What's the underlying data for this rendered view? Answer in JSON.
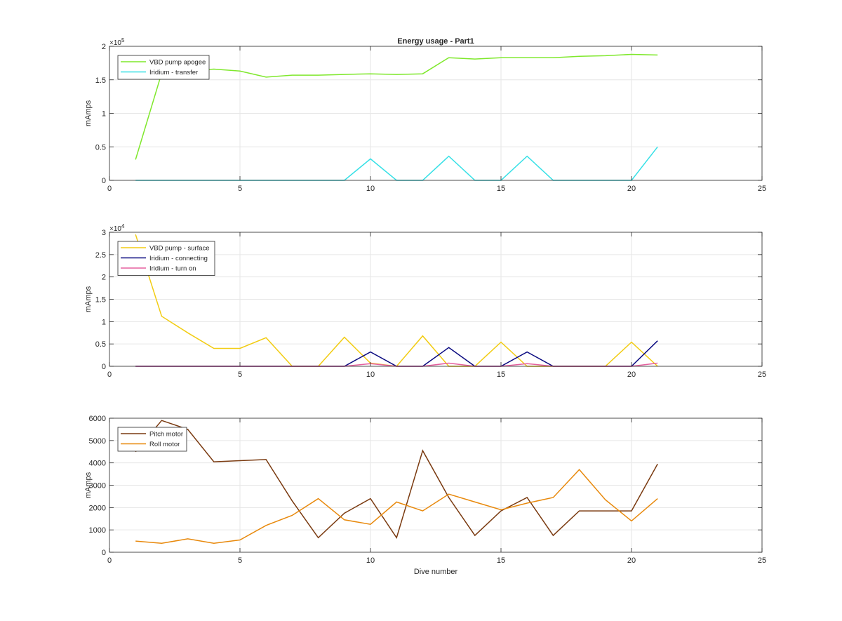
{
  "figure": {
    "title": "Energy usage - Part1",
    "colors": {
      "background": "#ffffff",
      "axes": "#262626",
      "grid": "#e6e6e6"
    }
  },
  "chart_data": [
    {
      "type": "line",
      "title": "Energy usage - Part1",
      "xlabel": "",
      "ylabel": "mAmps",
      "xlim": [
        0,
        25
      ],
      "ylim": [
        0,
        200000
      ],
      "xticks": [
        "0",
        "5",
        "10",
        "15",
        "20",
        "25"
      ],
      "xtick_values": [
        0,
        5,
        10,
        15,
        20,
        25
      ],
      "yticks": [
        "0",
        "0.5",
        "1",
        "1.5",
        "2"
      ],
      "ytick_values": [
        0,
        50000,
        100000,
        150000,
        200000
      ],
      "exponent_label": "×10",
      "exponent_power": "5",
      "grid": true,
      "legend_position": "top-left",
      "x": [
        1,
        2,
        3,
        4,
        5,
        6,
        7,
        8,
        9,
        10,
        11,
        12,
        13,
        14,
        15,
        16,
        17,
        18,
        19,
        20,
        21
      ],
      "series": [
        {
          "name": "VBD pump apogee",
          "color": "#7fe82c",
          "values": [
            31000,
            160000,
            163000,
            166000,
            163000,
            154000,
            157000,
            157000,
            158000,
            159000,
            158000,
            159000,
            183000,
            181000,
            183000,
            183000,
            183000,
            185000,
            186000,
            188000,
            187000
          ]
        },
        {
          "name": "Iridium - transfer",
          "color": "#36e0e6",
          "values": [
            0,
            0,
            0,
            0,
            0,
            0,
            0,
            0,
            0,
            32000,
            0,
            0,
            36000,
            0,
            0,
            36000,
            0,
            0,
            0,
            0,
            50000
          ]
        }
      ]
    },
    {
      "type": "line",
      "title": "",
      "xlabel": "",
      "ylabel": "mAmps",
      "xlim": [
        0,
        25
      ],
      "ylim": [
        0,
        30000
      ],
      "xticks": [
        "0",
        "5",
        "10",
        "15",
        "20",
        "25"
      ],
      "xtick_values": [
        0,
        5,
        10,
        15,
        20,
        25
      ],
      "yticks": [
        "0",
        "0.5",
        "1",
        "1.5",
        "2",
        "2.5",
        "3"
      ],
      "ytick_values": [
        0,
        5000,
        10000,
        15000,
        20000,
        25000,
        30000
      ],
      "exponent_label": "×10",
      "exponent_power": "4",
      "grid": true,
      "legend_position": "top-left",
      "x": [
        1,
        2,
        3,
        4,
        5,
        6,
        7,
        8,
        9,
        10,
        11,
        12,
        13,
        14,
        15,
        16,
        17,
        18,
        19,
        20,
        21
      ],
      "series": [
        {
          "name": "VBD pump - surface",
          "color": "#f2cc12",
          "values": [
            29500,
            11200,
            7500,
            4000,
            4000,
            6400,
            0,
            0,
            6500,
            700,
            0,
            6800,
            0,
            0,
            5400,
            0,
            0,
            0,
            0,
            5400,
            0
          ]
        },
        {
          "name": "Iridium - connecting",
          "color": "#0a0a80",
          "values": [
            0,
            0,
            0,
            0,
            0,
            0,
            0,
            0,
            0,
            3200,
            0,
            0,
            4200,
            0,
            0,
            3200,
            0,
            0,
            0,
            0,
            5700
          ]
        },
        {
          "name": "Iridium - turn on",
          "color": "#e6609f",
          "values": [
            0,
            0,
            0,
            0,
            0,
            0,
            0,
            0,
            0,
            600,
            0,
            0,
            700,
            0,
            0,
            600,
            0,
            0,
            0,
            0,
            700
          ]
        }
      ]
    },
    {
      "type": "line",
      "title": "",
      "xlabel": "Dive number",
      "ylabel": "mAmps",
      "xlim": [
        0,
        25
      ],
      "ylim": [
        0,
        6000
      ],
      "xticks": [
        "0",
        "5",
        "10",
        "15",
        "20",
        "25"
      ],
      "xtick_values": [
        0,
        5,
        10,
        15,
        20,
        25
      ],
      "yticks": [
        "0",
        "1000",
        "2000",
        "3000",
        "4000",
        "5000",
        "6000"
      ],
      "ytick_values": [
        0,
        1000,
        2000,
        3000,
        4000,
        5000,
        6000
      ],
      "exponent_label": "",
      "exponent_power": "",
      "grid": true,
      "legend_position": "top-left",
      "x": [
        1,
        2,
        3,
        4,
        5,
        6,
        7,
        8,
        9,
        10,
        11,
        12,
        13,
        14,
        15,
        16,
        17,
        18,
        19,
        20,
        21
      ],
      "series": [
        {
          "name": "Pitch motor",
          "color": "#7a3a10",
          "values": [
            4500,
            5900,
            5500,
            4050,
            4100,
            4150,
            2300,
            650,
            1750,
            2400,
            650,
            4550,
            2450,
            750,
            1850,
            2450,
            750,
            1850,
            1850,
            1850,
            3950
          ]
        },
        {
          "name": "Roll motor",
          "color": "#e8890c",
          "values": [
            500,
            400,
            600,
            400,
            550,
            1200,
            1650,
            2400,
            1450,
            1250,
            2250,
            1850,
            2600,
            2250,
            1900,
            2200,
            2450,
            3700,
            2350,
            1400,
            2400
          ]
        }
      ]
    }
  ]
}
